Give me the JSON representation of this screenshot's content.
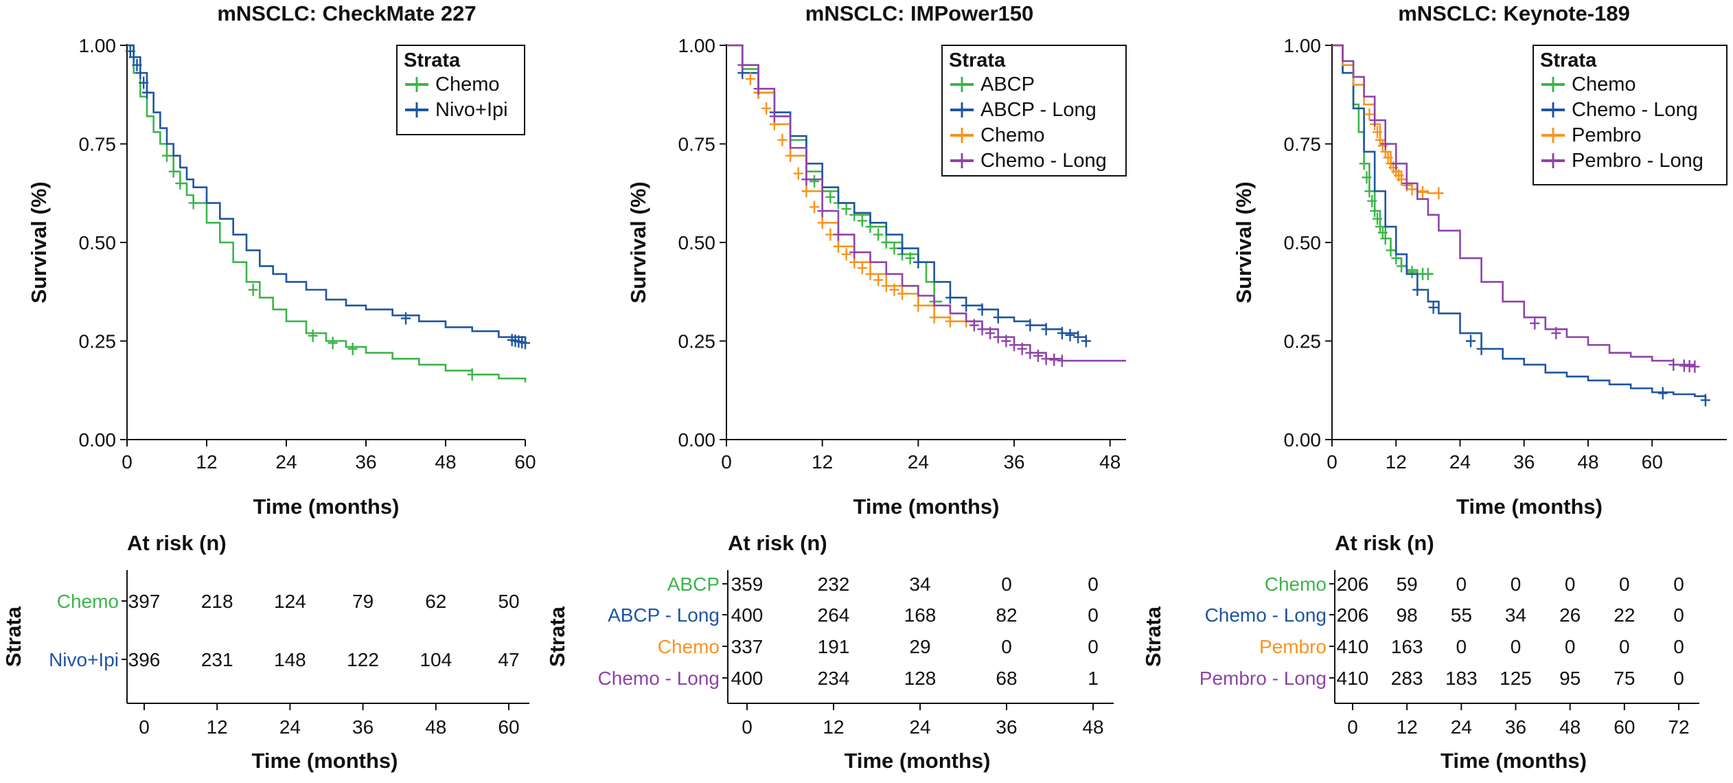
{
  "chart_data": [
    {
      "type": "line",
      "subtype": "kaplan-meier",
      "title": "mNSCLC: CheckMate 227",
      "xlabel": "Time (months)",
      "ylabel": "Survival (%)",
      "xlim": [
        0,
        60
      ],
      "ylim": [
        0,
        1
      ],
      "x_ticks": [
        "0",
        "12",
        "24",
        "36",
        "48",
        "60"
      ],
      "y_ticks": [
        "0.00",
        "0.25",
        "0.50",
        "0.75",
        "1.00"
      ],
      "legend_title": "Strata",
      "legend_position": "top-right",
      "series": [
        {
          "name": "Chemo",
          "color": "#3cb54a",
          "x": [
            0,
            1,
            2,
            3,
            4,
            5,
            6,
            7,
            8,
            9,
            10,
            12,
            14,
            16,
            18,
            20,
            22,
            24,
            27,
            30,
            33,
            36,
            40,
            44,
            48,
            52,
            56,
            60
          ],
          "y": [
            1.0,
            0.93,
            0.87,
            0.82,
            0.78,
            0.75,
            0.72,
            0.68,
            0.65,
            0.62,
            0.6,
            0.55,
            0.5,
            0.45,
            0.4,
            0.36,
            0.33,
            0.3,
            0.27,
            0.25,
            0.235,
            0.22,
            0.205,
            0.19,
            0.175,
            0.165,
            0.155,
            0.145
          ],
          "censor_x": [
            6,
            7,
            8,
            10,
            19,
            28,
            31,
            34,
            52
          ]
        },
        {
          "name": "Nivo+Ipi",
          "color": "#1f55a0",
          "x": [
            0,
            1,
            2,
            3,
            4,
            5,
            6,
            7,
            8,
            9,
            10,
            12,
            14,
            16,
            18,
            20,
            22,
            24,
            27,
            30,
            33,
            36,
            40,
            44,
            48,
            52,
            56,
            60
          ],
          "y": [
            1.0,
            0.97,
            0.93,
            0.88,
            0.83,
            0.79,
            0.75,
            0.72,
            0.69,
            0.66,
            0.64,
            0.6,
            0.56,
            0.52,
            0.48,
            0.44,
            0.42,
            0.4,
            0.38,
            0.355,
            0.34,
            0.33,
            0.315,
            0.3,
            0.285,
            0.275,
            0.26,
            0.245
          ],
          "censor_x": [
            0.5,
            1,
            1.5,
            2,
            2.5,
            3,
            42,
            58,
            58.5,
            59,
            59.5,
            60
          ]
        }
      ],
      "at_risk": {
        "title": "At risk (n)",
        "strata_label": "Strata",
        "times": [
          "0",
          "12",
          "24",
          "36",
          "48",
          "60"
        ],
        "rows": [
          {
            "name": "Chemo",
            "color": "#3cb54a",
            "values": [
              "397",
              "218",
              "124",
              "79",
              "62",
              "50"
            ]
          },
          {
            "name": "Nivo+Ipi",
            "color": "#1f55a0",
            "values": [
              "396",
              "231",
              "148",
              "122",
              "104",
              "47"
            ]
          }
        ]
      }
    },
    {
      "type": "line",
      "subtype": "kaplan-meier",
      "title": "mNSCLC: IMPower150",
      "xlabel": "Time (months)",
      "ylabel": "Survival (%)",
      "xlim": [
        0,
        50
      ],
      "ylim": [
        0,
        1
      ],
      "x_ticks": [
        "0",
        "12",
        "24",
        "36",
        "48"
      ],
      "y_ticks": [
        "0.00",
        "0.25",
        "0.50",
        "0.75",
        "1.00"
      ],
      "legend_title": "Strata",
      "legend_position": "top-right",
      "series": [
        {
          "name": "ABCP",
          "color": "#3cb54a",
          "x": [
            0,
            2,
            4,
            6,
            8,
            10,
            12,
            14,
            16,
            18,
            20,
            22,
            24,
            25,
            26,
            27
          ],
          "y": [
            1.0,
            0.94,
            0.88,
            0.82,
            0.76,
            0.68,
            0.63,
            0.6,
            0.57,
            0.54,
            0.5,
            0.47,
            0.45,
            0.4,
            0.35,
            0.35
          ],
          "censor_x": [
            11,
            12,
            13,
            14,
            15,
            16,
            17,
            18,
            19,
            20,
            21,
            22,
            23,
            24,
            26
          ]
        },
        {
          "name": "ABCP - Long",
          "color": "#1f55a0",
          "x": [
            0,
            2,
            4,
            6,
            8,
            10,
            12,
            14,
            16,
            18,
            20,
            22,
            24,
            26,
            28,
            30,
            32,
            34,
            36,
            38,
            40,
            42,
            44,
            45
          ],
          "y": [
            1.0,
            0.93,
            0.88,
            0.83,
            0.77,
            0.7,
            0.64,
            0.6,
            0.575,
            0.55,
            0.52,
            0.485,
            0.45,
            0.4,
            0.36,
            0.34,
            0.33,
            0.31,
            0.3,
            0.29,
            0.28,
            0.27,
            0.26,
            0.25
          ],
          "censor_x": [
            2,
            4,
            6,
            22,
            24,
            28,
            30,
            32,
            34,
            38,
            40,
            42,
            43,
            44,
            45
          ]
        },
        {
          "name": "Chemo",
          "color": "#f7941d",
          "x": [
            0,
            2,
            4,
            6,
            8,
            10,
            12,
            14,
            16,
            18,
            20,
            22,
            24,
            26,
            28,
            30,
            32
          ],
          "y": [
            1.0,
            0.95,
            0.88,
            0.8,
            0.72,
            0.63,
            0.55,
            0.49,
            0.45,
            0.42,
            0.39,
            0.37,
            0.34,
            0.31,
            0.3,
            0.3,
            0.3
          ],
          "censor_x": [
            3,
            4,
            5,
            6,
            7,
            8,
            9,
            10,
            11,
            12,
            13,
            14,
            15,
            16,
            17,
            18,
            19,
            20,
            21,
            22,
            24,
            26,
            28,
            30
          ]
        },
        {
          "name": "Chemo - Long",
          "color": "#8e44a8",
          "x": [
            0,
            2,
            4,
            6,
            8,
            10,
            12,
            14,
            16,
            18,
            20,
            22,
            24,
            26,
            28,
            30,
            32,
            34,
            36,
            38,
            40,
            42,
            44,
            46,
            48,
            50
          ],
          "y": [
            1.0,
            0.95,
            0.89,
            0.82,
            0.74,
            0.66,
            0.58,
            0.52,
            0.475,
            0.45,
            0.42,
            0.39,
            0.365,
            0.34,
            0.32,
            0.3,
            0.28,
            0.26,
            0.24,
            0.22,
            0.205,
            0.2,
            0.2,
            0.2,
            0.2,
            0.2
          ],
          "censor_x": [
            2,
            4,
            6,
            10,
            12,
            14,
            16,
            31,
            32,
            33,
            34,
            35,
            36,
            37,
            38,
            39,
            40,
            41,
            42
          ]
        }
      ],
      "at_risk": {
        "title": "At risk (n)",
        "strata_label": "Strata",
        "times": [
          "0",
          "12",
          "24",
          "36",
          "48"
        ],
        "rows": [
          {
            "name": "ABCP",
            "color": "#3cb54a",
            "values": [
              "359",
              "232",
              "34",
              "0",
              "0"
            ]
          },
          {
            "name": "ABCP - Long",
            "color": "#1f55a0",
            "values": [
              "400",
              "264",
              "168",
              "82",
              "0"
            ]
          },
          {
            "name": "Chemo",
            "color": "#f7941d",
            "values": [
              "337",
              "191",
              "29",
              "0",
              "0"
            ]
          },
          {
            "name": "Chemo - Long",
            "color": "#8e44a8",
            "values": [
              "400",
              "234",
              "128",
              "68",
              "1"
            ]
          }
        ]
      }
    },
    {
      "type": "line",
      "subtype": "kaplan-meier",
      "title": "mNSCLC: Keynote-189",
      "xlabel": "Time (months)",
      "ylabel": "Survival (%)",
      "xlim": [
        0,
        74
      ],
      "ylim": [
        0,
        1
      ],
      "x_ticks": [
        "0",
        "12",
        "24",
        "36",
        "48",
        "60"
      ],
      "y_ticks": [
        "0.00",
        "0.25",
        "0.50",
        "0.75",
        "1.00"
      ],
      "legend_title": "Strata",
      "legend_position": "top-right",
      "series": [
        {
          "name": "Chemo",
          "color": "#3cb54a",
          "x": [
            0,
            2,
            4,
            5,
            6,
            7,
            8,
            9,
            10,
            11,
            12,
            13,
            14,
            16,
            18,
            19
          ],
          "y": [
            1.0,
            0.93,
            0.85,
            0.78,
            0.7,
            0.63,
            0.58,
            0.54,
            0.51,
            0.48,
            0.46,
            0.44,
            0.43,
            0.42,
            0.42,
            0.42
          ],
          "censor_x": [
            6,
            6.5,
            7,
            7.5,
            8,
            8.5,
            9,
            9.5,
            10,
            11,
            12,
            13,
            15,
            17,
            18
          ]
        },
        {
          "name": "Chemo - Long",
          "color": "#1f55a0",
          "x": [
            0,
            2,
            4,
            6,
            8,
            10,
            12,
            14,
            16,
            18,
            20,
            24,
            28,
            32,
            36,
            40,
            44,
            48,
            52,
            56,
            60,
            64,
            68,
            70
          ],
          "y": [
            1.0,
            0.93,
            0.84,
            0.73,
            0.63,
            0.54,
            0.47,
            0.42,
            0.38,
            0.35,
            0.32,
            0.27,
            0.23,
            0.205,
            0.19,
            0.17,
            0.16,
            0.15,
            0.14,
            0.13,
            0.12,
            0.115,
            0.11,
            0.1
          ],
          "censor_x": [
            16,
            19,
            26,
            28,
            62,
            70
          ]
        },
        {
          "name": "Pembro",
          "color": "#f7941d",
          "x": [
            0,
            2,
            4,
            6,
            8,
            9,
            10,
            11,
            12,
            13,
            14,
            15,
            16,
            18,
            20
          ],
          "y": [
            1.0,
            0.95,
            0.9,
            0.85,
            0.8,
            0.76,
            0.73,
            0.7,
            0.68,
            0.66,
            0.645,
            0.635,
            0.63,
            0.625,
            0.625
          ],
          "censor_x": [
            7,
            8,
            8.5,
            9,
            9.5,
            10,
            10.5,
            11,
            11.5,
            12,
            12.5,
            13,
            14,
            15,
            17,
            20
          ]
        },
        {
          "name": "Pembro - Long",
          "color": "#8e44a8",
          "x": [
            0,
            2,
            4,
            6,
            8,
            10,
            12,
            14,
            16,
            18,
            20,
            24,
            28,
            32,
            36,
            40,
            44,
            48,
            52,
            56,
            60,
            64,
            68
          ],
          "y": [
            1.0,
            0.96,
            0.92,
            0.87,
            0.81,
            0.75,
            0.7,
            0.65,
            0.61,
            0.57,
            0.53,
            0.46,
            0.4,
            0.35,
            0.31,
            0.28,
            0.26,
            0.24,
            0.22,
            0.21,
            0.2,
            0.19,
            0.185
          ],
          "censor_x": [
            8,
            10,
            12,
            14,
            38,
            42,
            64,
            66,
            67,
            68
          ]
        }
      ],
      "at_risk": {
        "title": "At risk (n)",
        "strata_label": "Strata",
        "times": [
          "0",
          "12",
          "24",
          "36",
          "48",
          "60",
          "72"
        ],
        "rows": [
          {
            "name": "Chemo",
            "color": "#3cb54a",
            "values": [
              "206",
              "59",
              "0",
              "0",
              "0",
              "0",
              "0"
            ]
          },
          {
            "name": "Chemo - Long",
            "color": "#1f55a0",
            "values": [
              "206",
              "98",
              "55",
              "34",
              "26",
              "22",
              "0"
            ]
          },
          {
            "name": "Pembro",
            "color": "#f7941d",
            "values": [
              "410",
              "163",
              "0",
              "0",
              "0",
              "0",
              "0"
            ]
          },
          {
            "name": "Pembro - Long",
            "color": "#8e44a8",
            "values": [
              "410",
              "283",
              "183",
              "125",
              "95",
              "75",
              "0"
            ]
          }
        ]
      }
    }
  ]
}
